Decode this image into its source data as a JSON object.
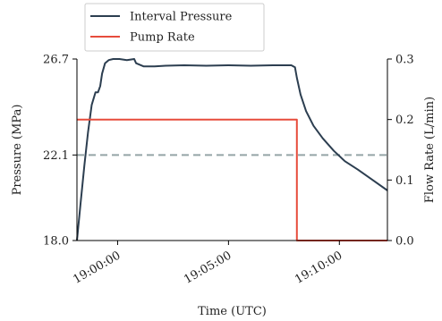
{
  "chart_data": {
    "type": "line",
    "title": "",
    "xlabel": "Time (UTC)",
    "ylabel_left": "Pressure (MPa)",
    "ylabel_right": "Flow Rate (L/min)",
    "x_unit": "time (HH:MM:SS UTC)",
    "xlim": [
      "18:58:10",
      "19:12:10"
    ],
    "ylim_left": [
      18.0,
      26.7
    ],
    "ylim_right": [
      0.0,
      0.3
    ],
    "x_ticks": [
      "19:00:00",
      "19:05:00",
      "19:10:00"
    ],
    "y_left_ticks": [
      "18.0",
      "22.1",
      "26.7"
    ],
    "y_right_ticks": [
      "0.0",
      "0.1",
      "0.2",
      "0.3"
    ],
    "grid": false,
    "legend_position": "top-left, above plot",
    "reference_line": {
      "axis": "left",
      "value": 22.1,
      "style": "dashed",
      "color": "#95a5a6"
    },
    "series": [
      {
        "name": "Interval Pressure",
        "axis": "left",
        "color": "#2c3e50",
        "x": [
          "18:58:10",
          "18:58:20",
          "18:58:30",
          "18:58:40",
          "18:58:50",
          "18:59:00",
          "18:59:07",
          "18:59:13",
          "18:59:18",
          "18:59:26",
          "18:59:36",
          "18:59:48",
          "19:00:05",
          "19:00:25",
          "19:00:45",
          "19:00:50",
          "19:01:10",
          "19:01:40",
          "19:02:10",
          "19:03:00",
          "19:04:00",
          "19:05:00",
          "19:06:00",
          "19:07:00",
          "19:07:50",
          "19:08:00",
          "19:08:05",
          "19:08:15",
          "19:08:30",
          "19:08:50",
          "19:09:15",
          "19:09:45",
          "19:10:15",
          "19:10:50",
          "19:11:30",
          "19:12:10"
        ],
        "y": [
          18.0,
          19.8,
          21.6,
          23.2,
          24.5,
          25.1,
          25.1,
          25.4,
          26.0,
          26.5,
          26.65,
          26.7,
          26.7,
          26.65,
          26.7,
          26.5,
          26.35,
          26.35,
          26.38,
          26.4,
          26.38,
          26.4,
          26.38,
          26.4,
          26.4,
          26.3,
          25.8,
          25.0,
          24.2,
          23.5,
          22.9,
          22.3,
          21.8,
          21.4,
          20.9,
          20.4
        ]
      },
      {
        "name": "Pump Rate",
        "axis": "right",
        "color": "#e74c3c",
        "x": [
          "18:58:10",
          "19:08:05",
          "19:08:05",
          "19:12:10"
        ],
        "y": [
          0.2,
          0.2,
          0.0,
          0.0
        ]
      }
    ]
  }
}
